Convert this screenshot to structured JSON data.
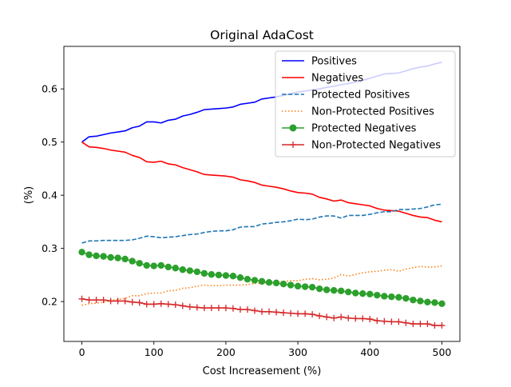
{
  "chart_data": {
    "type": "line",
    "title": "Original AdaCost",
    "xlabel": "Cost Increasement (%)",
    "ylabel": "(%)",
    "xlim": [
      -25,
      525
    ],
    "ylim": [
      0.125,
      0.68
    ],
    "xticks": [
      0,
      100,
      200,
      300,
      400,
      500
    ],
    "yticks": [
      0.2,
      0.3,
      0.4,
      0.5,
      0.6
    ],
    "grid": false,
    "legend_position": "top-right",
    "x": [
      0,
      10,
      20,
      30,
      40,
      50,
      60,
      70,
      80,
      90,
      100,
      110,
      120,
      130,
      140,
      150,
      160,
      170,
      180,
      190,
      200,
      210,
      220,
      230,
      240,
      250,
      260,
      270,
      280,
      290,
      300,
      310,
      320,
      330,
      340,
      350,
      360,
      370,
      380,
      390,
      400,
      410,
      420,
      430,
      440,
      450,
      460,
      470,
      480,
      490,
      500
    ],
    "series": [
      {
        "name": "Positives",
        "color": "#0000ff",
        "style": "solid",
        "marker": "none",
        "values": [
          0.5,
          0.51,
          0.511,
          0.514,
          0.517,
          0.519,
          0.521,
          0.527,
          0.53,
          0.538,
          0.538,
          0.536,
          0.541,
          0.543,
          0.549,
          0.552,
          0.556,
          0.561,
          0.562,
          0.563,
          0.564,
          0.566,
          0.571,
          0.573,
          0.575,
          0.581,
          0.583,
          0.585,
          0.588,
          0.591,
          0.594,
          0.596,
          0.598,
          0.6,
          0.603,
          0.605,
          0.608,
          0.61,
          0.613,
          0.616,
          0.62,
          0.624,
          0.628,
          0.629,
          0.63,
          0.634,
          0.638,
          0.641,
          0.643,
          0.647,
          0.65
        ]
      },
      {
        "name": "Negatives",
        "color": "#ff0000",
        "style": "solid",
        "marker": "none",
        "values": [
          0.5,
          0.491,
          0.49,
          0.488,
          0.485,
          0.483,
          0.481,
          0.475,
          0.471,
          0.463,
          0.462,
          0.464,
          0.459,
          0.457,
          0.452,
          0.448,
          0.444,
          0.439,
          0.438,
          0.437,
          0.436,
          0.434,
          0.429,
          0.427,
          0.424,
          0.419,
          0.417,
          0.415,
          0.412,
          0.408,
          0.405,
          0.404,
          0.402,
          0.396,
          0.393,
          0.389,
          0.391,
          0.386,
          0.384,
          0.382,
          0.38,
          0.375,
          0.372,
          0.371,
          0.37,
          0.366,
          0.362,
          0.359,
          0.358,
          0.353,
          0.35
        ]
      },
      {
        "name": "Protected Positives",
        "color": "#1f77b4",
        "style": "dashed",
        "marker": "none",
        "values": [
          0.31,
          0.314,
          0.314,
          0.315,
          0.315,
          0.315,
          0.315,
          0.316,
          0.319,
          0.323,
          0.322,
          0.32,
          0.321,
          0.322,
          0.324,
          0.326,
          0.327,
          0.33,
          0.332,
          0.333,
          0.333,
          0.335,
          0.34,
          0.341,
          0.341,
          0.346,
          0.347,
          0.349,
          0.35,
          0.352,
          0.355,
          0.354,
          0.355,
          0.359,
          0.361,
          0.361,
          0.357,
          0.362,
          0.362,
          0.362,
          0.364,
          0.367,
          0.369,
          0.369,
          0.373,
          0.373,
          0.374,
          0.375,
          0.378,
          0.382,
          0.383
        ]
      },
      {
        "name": "Non-Protected Positives",
        "color": "#ff7f0e",
        "style": "dotted",
        "marker": "none",
        "values": [
          0.193,
          0.196,
          0.197,
          0.199,
          0.202,
          0.204,
          0.206,
          0.211,
          0.211,
          0.215,
          0.216,
          0.216,
          0.22,
          0.221,
          0.225,
          0.226,
          0.229,
          0.231,
          0.23,
          0.23,
          0.231,
          0.231,
          0.231,
          0.232,
          0.234,
          0.235,
          0.236,
          0.236,
          0.238,
          0.239,
          0.239,
          0.242,
          0.243,
          0.241,
          0.242,
          0.244,
          0.251,
          0.248,
          0.251,
          0.254,
          0.256,
          0.257,
          0.259,
          0.26,
          0.257,
          0.261,
          0.264,
          0.266,
          0.265,
          0.265,
          0.267
        ]
      },
      {
        "name": "Protected Negatives",
        "color": "#2ca02c",
        "style": "solid",
        "marker": "circle",
        "values": [
          0.293,
          0.288,
          0.286,
          0.285,
          0.283,
          0.282,
          0.28,
          0.276,
          0.272,
          0.268,
          0.267,
          0.268,
          0.265,
          0.263,
          0.26,
          0.258,
          0.256,
          0.253,
          0.251,
          0.25,
          0.249,
          0.248,
          0.245,
          0.242,
          0.24,
          0.238,
          0.236,
          0.235,
          0.233,
          0.231,
          0.229,
          0.228,
          0.227,
          0.224,
          0.222,
          0.221,
          0.22,
          0.218,
          0.216,
          0.215,
          0.214,
          0.212,
          0.21,
          0.209,
          0.208,
          0.206,
          0.203,
          0.201,
          0.199,
          0.198,
          0.196
        ]
      },
      {
        "name": "Non-Protected Negatives",
        "color": "#d62728",
        "style": "solid",
        "marker": "plus",
        "values": [
          0.205,
          0.203,
          0.203,
          0.203,
          0.201,
          0.201,
          0.201,
          0.199,
          0.198,
          0.195,
          0.195,
          0.196,
          0.195,
          0.194,
          0.192,
          0.19,
          0.189,
          0.188,
          0.188,
          0.188,
          0.188,
          0.187,
          0.185,
          0.185,
          0.183,
          0.181,
          0.181,
          0.18,
          0.179,
          0.178,
          0.177,
          0.177,
          0.176,
          0.173,
          0.171,
          0.169,
          0.171,
          0.169,
          0.168,
          0.168,
          0.167,
          0.164,
          0.163,
          0.162,
          0.162,
          0.16,
          0.158,
          0.158,
          0.158,
          0.155,
          0.155
        ]
      }
    ]
  }
}
